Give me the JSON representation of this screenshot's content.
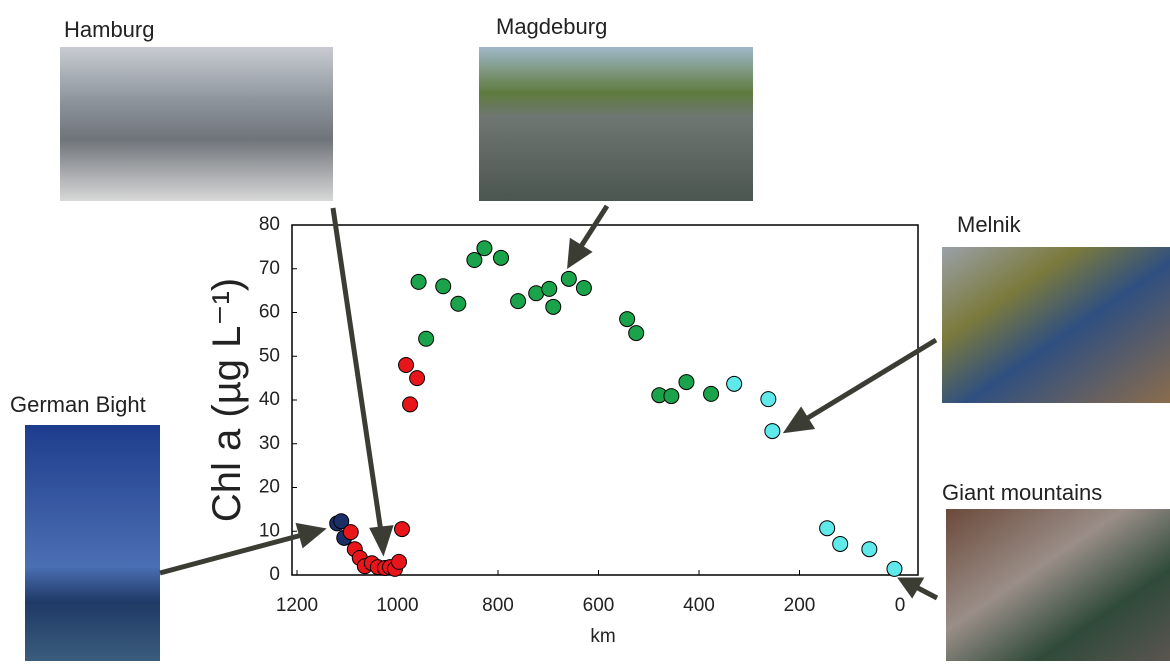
{
  "chart_data": {
    "type": "scatter",
    "x_label": "km",
    "y_label": "Chl a (µg L⁻¹)",
    "xlim": [
      1200,
      0
    ],
    "ylim": [
      0,
      80
    ],
    "xticks": [
      1200,
      1000,
      800,
      600,
      400,
      200,
      0
    ],
    "yticks": [
      0,
      10,
      20,
      30,
      40,
      50,
      60,
      70,
      80
    ],
    "series": [
      {
        "color": "#1b2f66",
        "x": [
          1120,
          1112,
          1106
        ],
        "values": [
          11.8,
          12.3,
          8.5
        ]
      },
      {
        "color": "#e8151b",
        "x": [
          1093,
          1085,
          1075,
          1065,
          1051,
          1039,
          1025,
          1015,
          1005,
          997,
          991,
          983,
          961,
          975
        ],
        "values": [
          9.8,
          5.9,
          3.9,
          2,
          2.7,
          1.8,
          1.6,
          1.8,
          1.4,
          3,
          10.5,
          48,
          45,
          39
        ]
      },
      {
        "color": "#1aa34a",
        "x": [
          958,
          943,
          909,
          879,
          847,
          827,
          794,
          760,
          724,
          698,
          690,
          659,
          629,
          543,
          525,
          479,
          455,
          425,
          376
        ],
        "values": [
          67,
          54,
          66,
          62,
          72,
          74.7,
          72.5,
          62.6,
          64.4,
          65.4,
          61.3,
          67.7,
          65.6,
          58.5,
          55.3,
          41.1,
          40.9,
          44.1,
          41.4
        ]
      },
      {
        "color": "#5fe9ea",
        "x": [
          330,
          262,
          254,
          145,
          119,
          61,
          11
        ],
        "values": [
          43.7,
          40.2,
          32.9,
          10.7,
          7.1,
          5.9,
          1.4
        ]
      }
    ],
    "annotations": [
      "Hamburg",
      "Magdeburg",
      "Melnik",
      "German Bight",
      "Giant mountains"
    ]
  }
}
